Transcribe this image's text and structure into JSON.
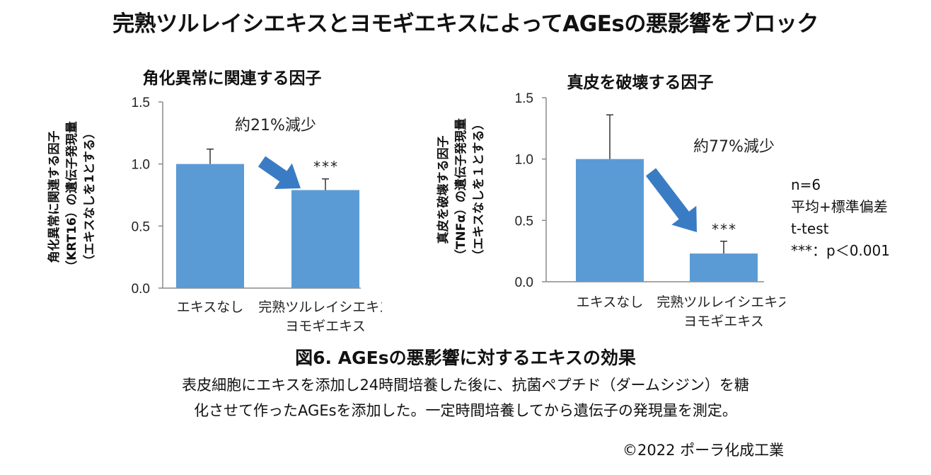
{
  "title": "完熟ツルレイシエキスとヨモギエキスによってAGEsの悪影響をブロック",
  "chart_data": [
    {
      "type": "bar",
      "title": "角化異常に関連する因子",
      "ylabel_lines": [
        "角化異常に関連する因子",
        "（KRT16）の遺伝子発現量",
        "（エキスなしを1とする）"
      ],
      "categories": [
        [
          "エキスなし"
        ],
        [
          "完熟ツルレイシエキス",
          "ヨモギエキス"
        ]
      ],
      "values": [
        1.0,
        0.79
      ],
      "errors": [
        0.12,
        0.09
      ],
      "significance": [
        "",
        "***"
      ],
      "annotation": "約21%減少",
      "yticks": [
        "0.0",
        "0.5",
        "1.0",
        "1.5"
      ],
      "ylim": [
        0,
        1.5
      ],
      "color": "#5b9bd5",
      "arrow_color": "#3a7cc4"
    },
    {
      "type": "bar",
      "title": "真皮を破壊する因子",
      "ylabel_lines": [
        "真皮を破壊する因子",
        "（TNFα）の遺伝子発現量",
        "（エキスなしを１とする）"
      ],
      "categories": [
        [
          "エキスなし"
        ],
        [
          "完熟ツルレイシエキス",
          "ヨモギエキス"
        ]
      ],
      "values": [
        1.0,
        0.23
      ],
      "errors": [
        0.36,
        0.1
      ],
      "significance": [
        "",
        "***"
      ],
      "annotation": "約77%減少",
      "yticks": [
        "0.0",
        "0.5",
        "1.0",
        "1.5"
      ],
      "ylim": [
        0,
        1.5
      ],
      "color": "#5b9bd5",
      "arrow_color": "#3a7cc4"
    }
  ],
  "stats_notes": [
    "n=6",
    "平均+標準偏差",
    "t-test",
    "***：p＜0.001"
  ],
  "figure_caption": "図6.  AGEsの悪影響に対するエキスの効果",
  "description_lines": [
    "表皮細胞にエキスを添加し24時間培養した後に、抗菌ペプチド（ダームシジン）を糖",
    "化させて作ったAGEsを添加した。一定時間培養してから遺伝子の発現量を測定。"
  ],
  "copyright": "©2022 ポーラ化成工業"
}
